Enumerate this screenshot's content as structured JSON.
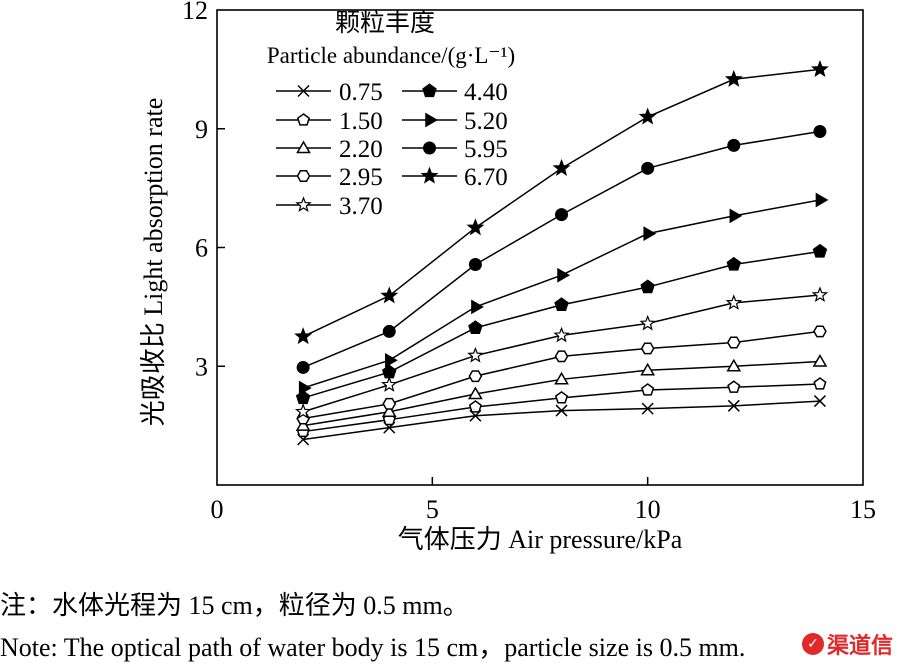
{
  "chart_data": {
    "type": "line",
    "xlabel": "气体压力 Air pressure/kPa",
    "ylabel": "光吸收比 Light absorption rate",
    "xlim": [
      0,
      15
    ],
    "ylim": [
      0,
      12
    ],
    "xticks": [
      0,
      5,
      10,
      15
    ],
    "yticks": [
      3,
      6,
      9,
      12
    ],
    "legend_title_zh": "颗粒丰度",
    "legend_title_en": "Particle abundance/(g·L⁻¹)",
    "legend_position": "top-left",
    "x": [
      2,
      4,
      6,
      8,
      10,
      12,
      14
    ],
    "series": [
      {
        "name": "0.75",
        "marker": "x-mark",
        "values": [
          1.15,
          1.45,
          1.75,
          1.88,
          1.93,
          2.0,
          2.12
        ]
      },
      {
        "name": "1.50",
        "marker": "pentagon-open",
        "values": [
          1.35,
          1.65,
          1.97,
          2.2,
          2.4,
          2.47,
          2.55
        ]
      },
      {
        "name": "2.20",
        "marker": "triangle-open",
        "values": [
          1.5,
          1.85,
          2.3,
          2.67,
          2.9,
          3.0,
          3.12
        ]
      },
      {
        "name": "2.95",
        "marker": "hexagon-open",
        "values": [
          1.68,
          2.05,
          2.75,
          3.25,
          3.45,
          3.6,
          3.88
        ]
      },
      {
        "name": "3.70",
        "marker": "star-open",
        "values": [
          1.85,
          2.53,
          3.27,
          3.78,
          4.08,
          4.6,
          4.8
        ]
      },
      {
        "name": "4.40",
        "marker": "pentagon-filled",
        "values": [
          2.2,
          2.85,
          3.97,
          4.55,
          5.0,
          5.57,
          5.9
        ]
      },
      {
        "name": "5.20",
        "marker": "triangle-right-filled",
        "values": [
          2.45,
          3.15,
          4.5,
          5.3,
          6.35,
          6.8,
          7.2
        ]
      },
      {
        "name": "5.95",
        "marker": "circle-filled",
        "values": [
          2.97,
          3.88,
          5.57,
          6.83,
          8.0,
          8.58,
          8.93
        ]
      },
      {
        "name": "6.70",
        "marker": "star-filled",
        "values": [
          3.75,
          4.78,
          6.5,
          8.0,
          9.3,
          10.25,
          10.5
        ]
      }
    ]
  },
  "notes": {
    "zh": "注：水体光程为 15 cm，粒径为 0.5 mm。",
    "en": "Note: The optical path of water body is 15 cm，particle size is 0.5 mm."
  },
  "watermark": {
    "badge": "✓",
    "text": "渠道信"
  }
}
